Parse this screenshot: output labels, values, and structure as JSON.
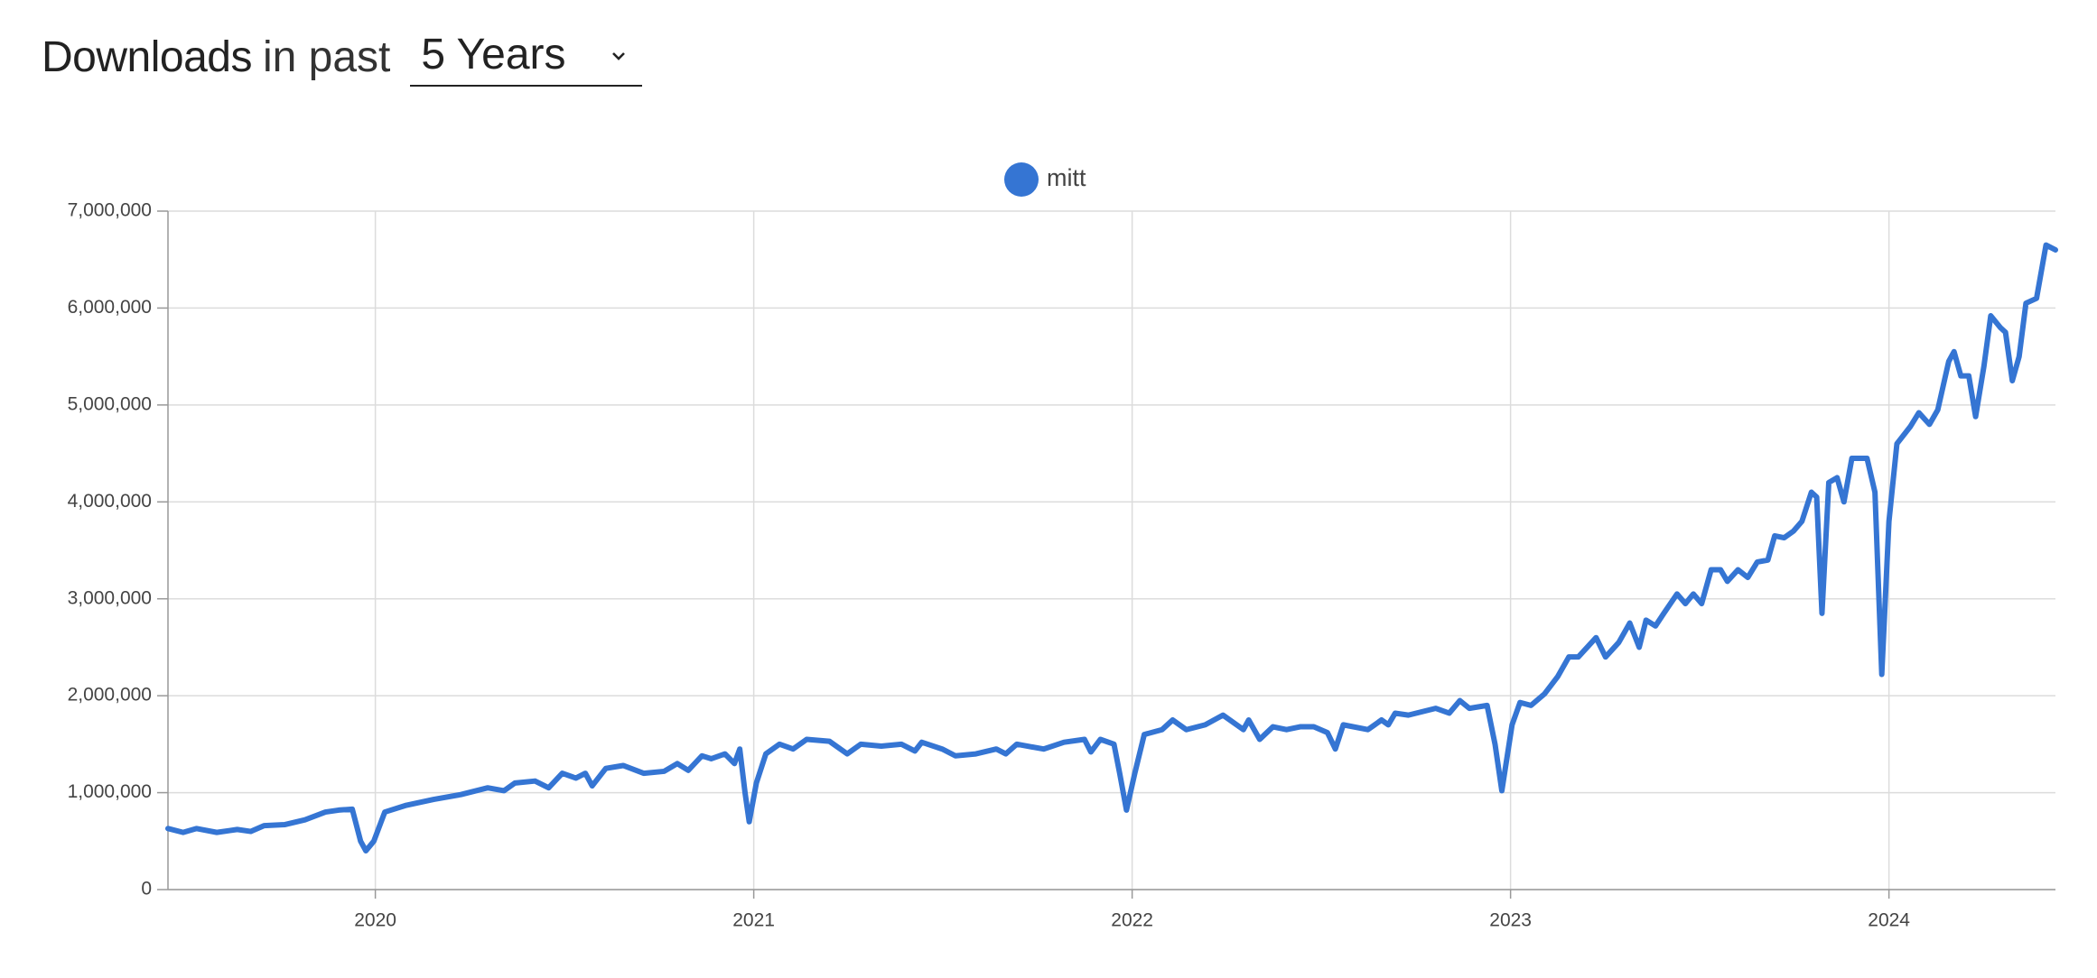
{
  "header": {
    "title": "Downloads",
    "subtitle": "in past",
    "select": "5 Years"
  },
  "chart_data": {
    "type": "line",
    "x": [
      2019.452,
      2019.492,
      2019.527,
      2019.581,
      2019.635,
      2019.671,
      2019.706,
      2019.76,
      2019.814,
      2019.868,
      2019.903,
      2019.939,
      2019.961,
      2019.975,
      2019.996,
      2020.025,
      2020.082,
      2020.154,
      2020.226,
      2020.297,
      2020.34,
      2020.369,
      2020.422,
      2020.458,
      2020.494,
      2020.53,
      2020.555,
      2020.573,
      2020.609,
      2020.655,
      2020.709,
      2020.763,
      2020.798,
      2020.827,
      2020.863,
      2020.888,
      2020.924,
      2020.949,
      2020.963,
      2020.977,
      2020.988,
      2021.007,
      2021.032,
      2021.068,
      2021.104,
      2021.14,
      2021.2,
      2021.247,
      2021.283,
      2021.337,
      2021.39,
      2021.426,
      2021.444,
      2021.498,
      2021.533,
      2021.587,
      2021.641,
      2021.666,
      2021.695,
      2021.766,
      2021.82,
      2021.874,
      2021.891,
      2021.916,
      2021.952,
      2021.967,
      2021.985,
      2022.007,
      2022.032,
      2022.079,
      2022.107,
      2022.143,
      2022.193,
      2022.24,
      2022.294,
      2022.308,
      2022.337,
      2022.372,
      2022.408,
      2022.444,
      2022.48,
      2022.516,
      2022.537,
      2022.558,
      2022.623,
      2022.659,
      2022.677,
      2022.695,
      2022.73,
      2022.802,
      2022.838,
      2022.866,
      2022.891,
      2022.938,
      2022.959,
      2022.977,
      2023.004,
      2023.025,
      2023.054,
      2023.09,
      2023.125,
      2023.154,
      2023.179,
      2023.226,
      2023.251,
      2023.286,
      2023.315,
      2023.34,
      2023.358,
      2023.383,
      2023.405,
      2023.44,
      2023.462,
      2023.483,
      2023.505,
      2023.53,
      2023.555,
      2023.573,
      2023.601,
      2023.627,
      2023.652,
      2023.68,
      2023.698,
      2023.723,
      2023.748,
      2023.77,
      2023.795,
      2023.809,
      2023.823,
      2023.841,
      2023.863,
      2023.881,
      2023.902,
      2023.942,
      2023.963,
      2023.981,
      2024,
      2024.021,
      2024.057,
      2024.079,
      2024.107,
      2024.129,
      2024.158,
      2024.172,
      2024.19,
      2024.211,
      2024.229,
      2024.251,
      2024.269,
      2024.294,
      2024.308,
      2024.326,
      2024.344,
      2024.362,
      2024.39,
      2024.415,
      2024.44
    ],
    "series": [
      {
        "name": "mitt",
        "color": "#3575d3",
        "values": [
          630000,
          590000,
          630000,
          590000,
          620000,
          600000,
          660000,
          670000,
          720000,
          800000,
          820000,
          830000,
          500000,
          400000,
          500000,
          800000,
          870000,
          930000,
          980000,
          1050000,
          1020000,
          1100000,
          1120000,
          1050000,
          1200000,
          1150000,
          1200000,
          1070000,
          1250000,
          1280000,
          1200000,
          1220000,
          1300000,
          1230000,
          1380000,
          1350000,
          1400000,
          1300000,
          1450000,
          1000000,
          700000,
          1100000,
          1400000,
          1500000,
          1450000,
          1550000,
          1530000,
          1400000,
          1500000,
          1480000,
          1500000,
          1430000,
          1520000,
          1450000,
          1380000,
          1400000,
          1450000,
          1400000,
          1500000,
          1450000,
          1520000,
          1550000,
          1420000,
          1550000,
          1500000,
          1200000,
          820000,
          1200000,
          1600000,
          1650000,
          1750000,
          1650000,
          1700000,
          1800000,
          1650000,
          1750000,
          1550000,
          1680000,
          1650000,
          1680000,
          1680000,
          1620000,
          1450000,
          1700000,
          1650000,
          1750000,
          1700000,
          1820000,
          1800000,
          1870000,
          1820000,
          1950000,
          1870000,
          1900000,
          1500000,
          1020000,
          1700000,
          1930000,
          1900000,
          2020000,
          2200000,
          2400000,
          2400000,
          2600000,
          2400000,
          2550000,
          2750000,
          2500000,
          2780000,
          2720000,
          2850000,
          3050000,
          2950000,
          3050000,
          2950000,
          3300000,
          3300000,
          3180000,
          3300000,
          3220000,
          3380000,
          3400000,
          3650000,
          3630000,
          3700000,
          3800000,
          4100000,
          4050000,
          2850000,
          4200000,
          4250000,
          4000000,
          4450000,
          4450000,
          4100000,
          2220000,
          3800000,
          4600000,
          4780000,
          4920000,
          4800000,
          4950000,
          5450000,
          5550000,
          5300000,
          5300000,
          4880000,
          5400000,
          5920000,
          5800000,
          5750000,
          5250000,
          5500000,
          6050000,
          6100000,
          6650000,
          6600000
        ]
      }
    ],
    "xlim": [
      2019.452,
      2024.44
    ],
    "xticks": [
      2020,
      2021,
      2022,
      2023,
      2024
    ],
    "ylim": [
      0,
      7000000
    ],
    "yticks": [
      0,
      {
        "value": 1000000,
        "label": "1,000,000"
      },
      {
        "value": 2000000,
        "label": "2,000,000"
      },
      {
        "value": 3000000,
        "label": "3,000,000"
      },
      {
        "value": 4000000,
        "label": "4,000,000"
      },
      {
        "value": 5000000,
        "label": "5,000,000"
      },
      {
        "value": 6000000,
        "label": "6,000,000"
      },
      {
        "value": 7000000,
        "label": "7,000,000"
      }
    ],
    "grid": true,
    "legend": "top"
  }
}
